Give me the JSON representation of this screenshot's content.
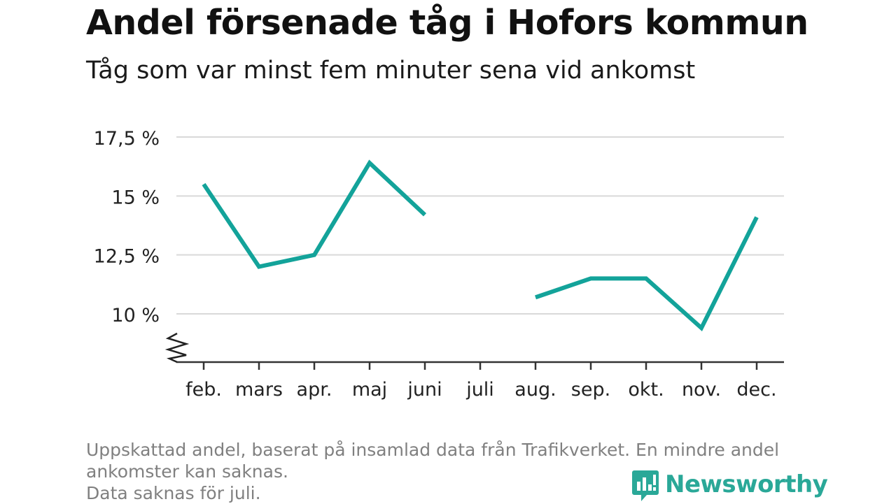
{
  "header": {
    "title": "Andel försenade tåg i Hofors kommun",
    "subtitle": "Tåg som var minst fem minuter sena vid ankomst"
  },
  "footnote": {
    "line1": "Uppskattad andel, baserat på insamlad data från Trafikverket. En mindre andel",
    "line2": "ankomster kan saknas.",
    "line3": "Data saknas för juli."
  },
  "brand": {
    "name": "Newsworthy",
    "color": "#2aa898"
  },
  "chart_data": {
    "type": "line",
    "categories": [
      "feb.",
      "mars",
      "apr.",
      "maj",
      "juni",
      "juli",
      "aug.",
      "sep.",
      "okt.",
      "nov.",
      "dec."
    ],
    "series": [
      {
        "values": [
          15.5,
          12.0,
          12.5,
          16.4,
          14.2,
          null,
          10.7,
          11.5,
          11.5,
          9.4,
          14.1
        ],
        "color": "#13a39a"
      }
    ],
    "y_ticks": [
      10,
      12.5,
      15,
      17.5
    ],
    "y_tick_labels": [
      "10 %",
      "12,5 %",
      "15 %",
      "17,5 %"
    ],
    "ylim": [
      8,
      17.5
    ],
    "y_axis_break": true,
    "grid": true,
    "gridline_color": "#d9d9d9",
    "legend": "none"
  }
}
